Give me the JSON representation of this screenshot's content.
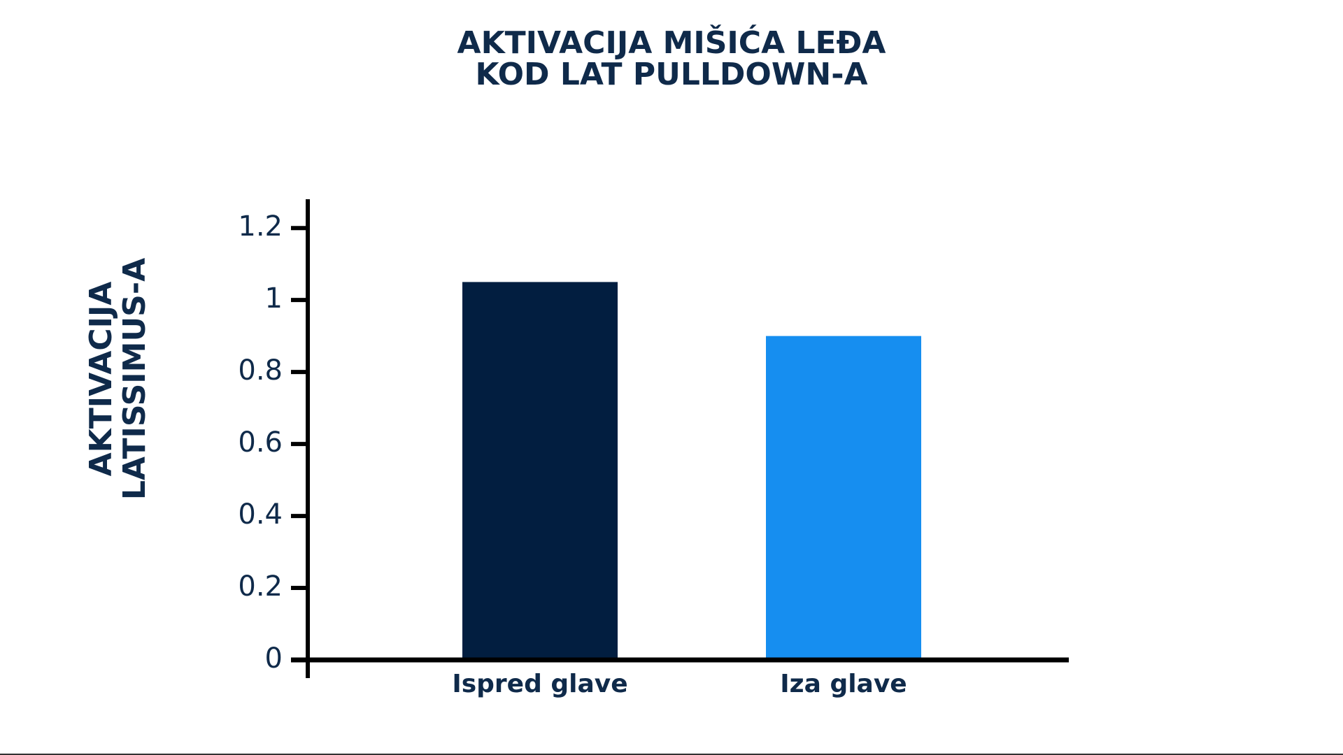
{
  "chart_data": {
    "type": "bar",
    "title": [
      "AKTIVACIJA MIŠIĆA LEĐA",
      "KOD LAT PULLDOWN-A"
    ],
    "y_label": [
      "AKTIVACIJA",
      "LATISSIMUS-A"
    ],
    "categories": [
      "Ispred glave",
      "Iza glave"
    ],
    "values": [
      1.05,
      0.9
    ],
    "colors": [
      "#021e40",
      "#168ef0"
    ],
    "ylim": [
      0,
      1.28
    ],
    "yticks": [
      0,
      0.2,
      0.4,
      0.6,
      0.8,
      1,
      1.2
    ]
  }
}
